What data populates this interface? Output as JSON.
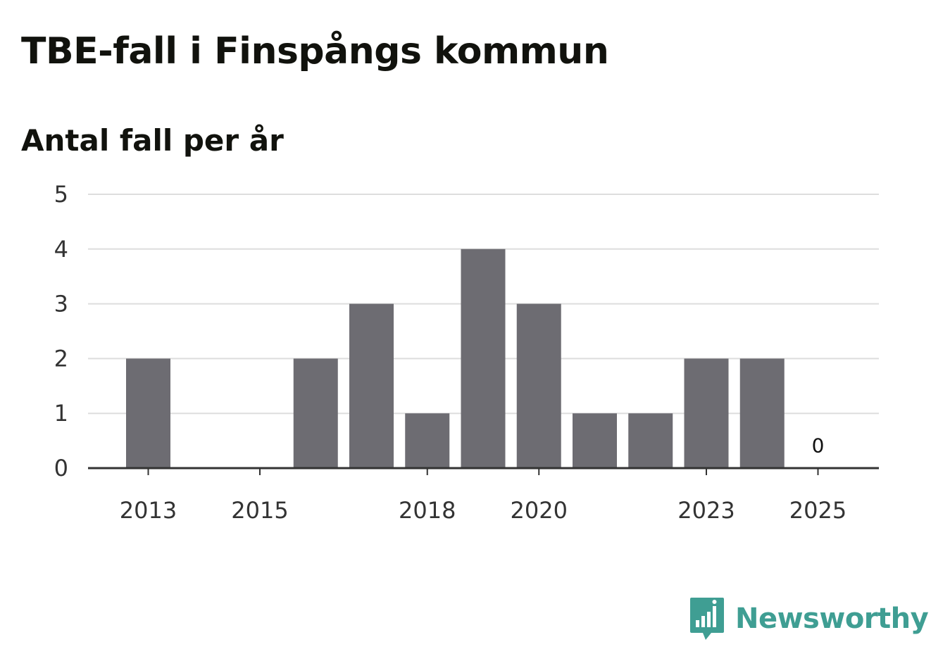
{
  "header": {
    "title": "TBE-fall i Finspångs kommun",
    "subtitle": "Antal fall per år"
  },
  "brand": {
    "name": "Newsworthy",
    "color": "#3f9e93",
    "icon": "newsworthy-logo-icon"
  },
  "colors": {
    "bar": "#6d6c72",
    "grid": "#dddddd",
    "axis": "#333333"
  },
  "chart_data": {
    "type": "bar",
    "categories": [
      "2013",
      "2014",
      "2015",
      "2016",
      "2017",
      "2018",
      "2019",
      "2020",
      "2021",
      "2022",
      "2023",
      "2024",
      "2025"
    ],
    "values": [
      2,
      0,
      0,
      2,
      3,
      1,
      4,
      3,
      1,
      1,
      2,
      2,
      0
    ],
    "x_tick_labels": [
      "2013",
      "2015",
      "2018",
      "2020",
      "2023",
      "2025"
    ],
    "y_ticks": [
      0,
      1,
      2,
      3,
      4,
      5
    ],
    "ylim": [
      0,
      5
    ],
    "data_labels": [
      {
        "category": "2025",
        "text": "0"
      }
    ],
    "title": "TBE-fall i Finspångs kommun",
    "subtitle": "Antal fall per år",
    "xlabel": "",
    "ylabel": "",
    "grid": true,
    "legend": "none"
  }
}
